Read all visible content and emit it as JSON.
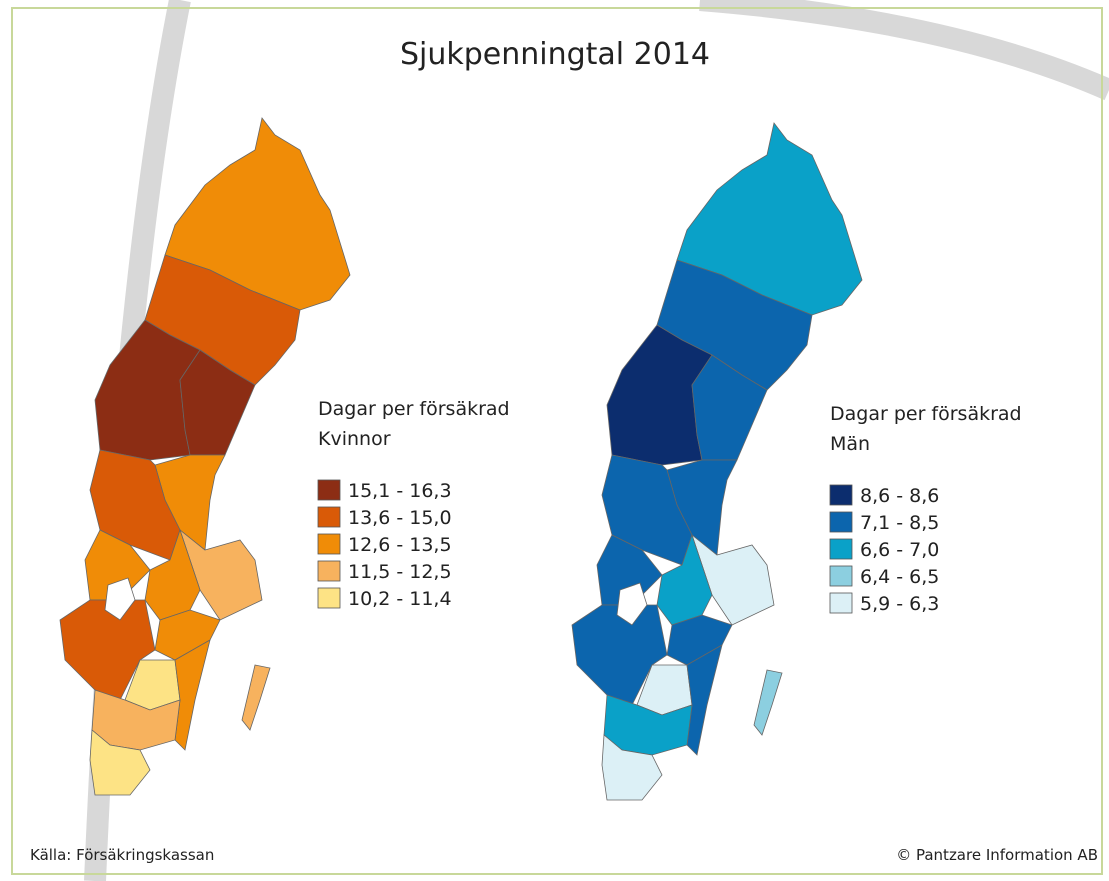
{
  "title": "Sjukpenningtal 2014",
  "maps": [
    {
      "legend_title": [
        "Dagar per försäkrad",
        "Kvinnor"
      ],
      "classes": [
        {
          "label": "15,1 - 16,3",
          "color": "#8c2d14"
        },
        {
          "label": "13,6 - 15,0",
          "color": "#d95a07"
        },
        {
          "label": "12,6 - 13,5",
          "color": "#f08c07"
        },
        {
          "label": "11,5 - 12,5",
          "color": "#f7b25e"
        },
        {
          "label": "10,2 - 11,4",
          "color": "#fde385"
        }
      ]
    },
    {
      "legend_title": [
        "Dagar per försäkrad",
        "Män"
      ],
      "classes": [
        {
          "label": "8,6 - 8,6",
          "color": "#0c2d6e"
        },
        {
          "label": "7,1 - 8,5",
          "color": "#0c65ad"
        },
        {
          "label": "6,6 - 7,0",
          "color": "#0aa1c8"
        },
        {
          "label": "6,4 - 6,5",
          "color": "#8ccfe0"
        },
        {
          "label": "5,9 - 6,3",
          "color": "#dcf0f6"
        }
      ]
    }
  ],
  "source": "Källa: Försäkringskassan",
  "copyright": "© Pantzare Information AB"
}
